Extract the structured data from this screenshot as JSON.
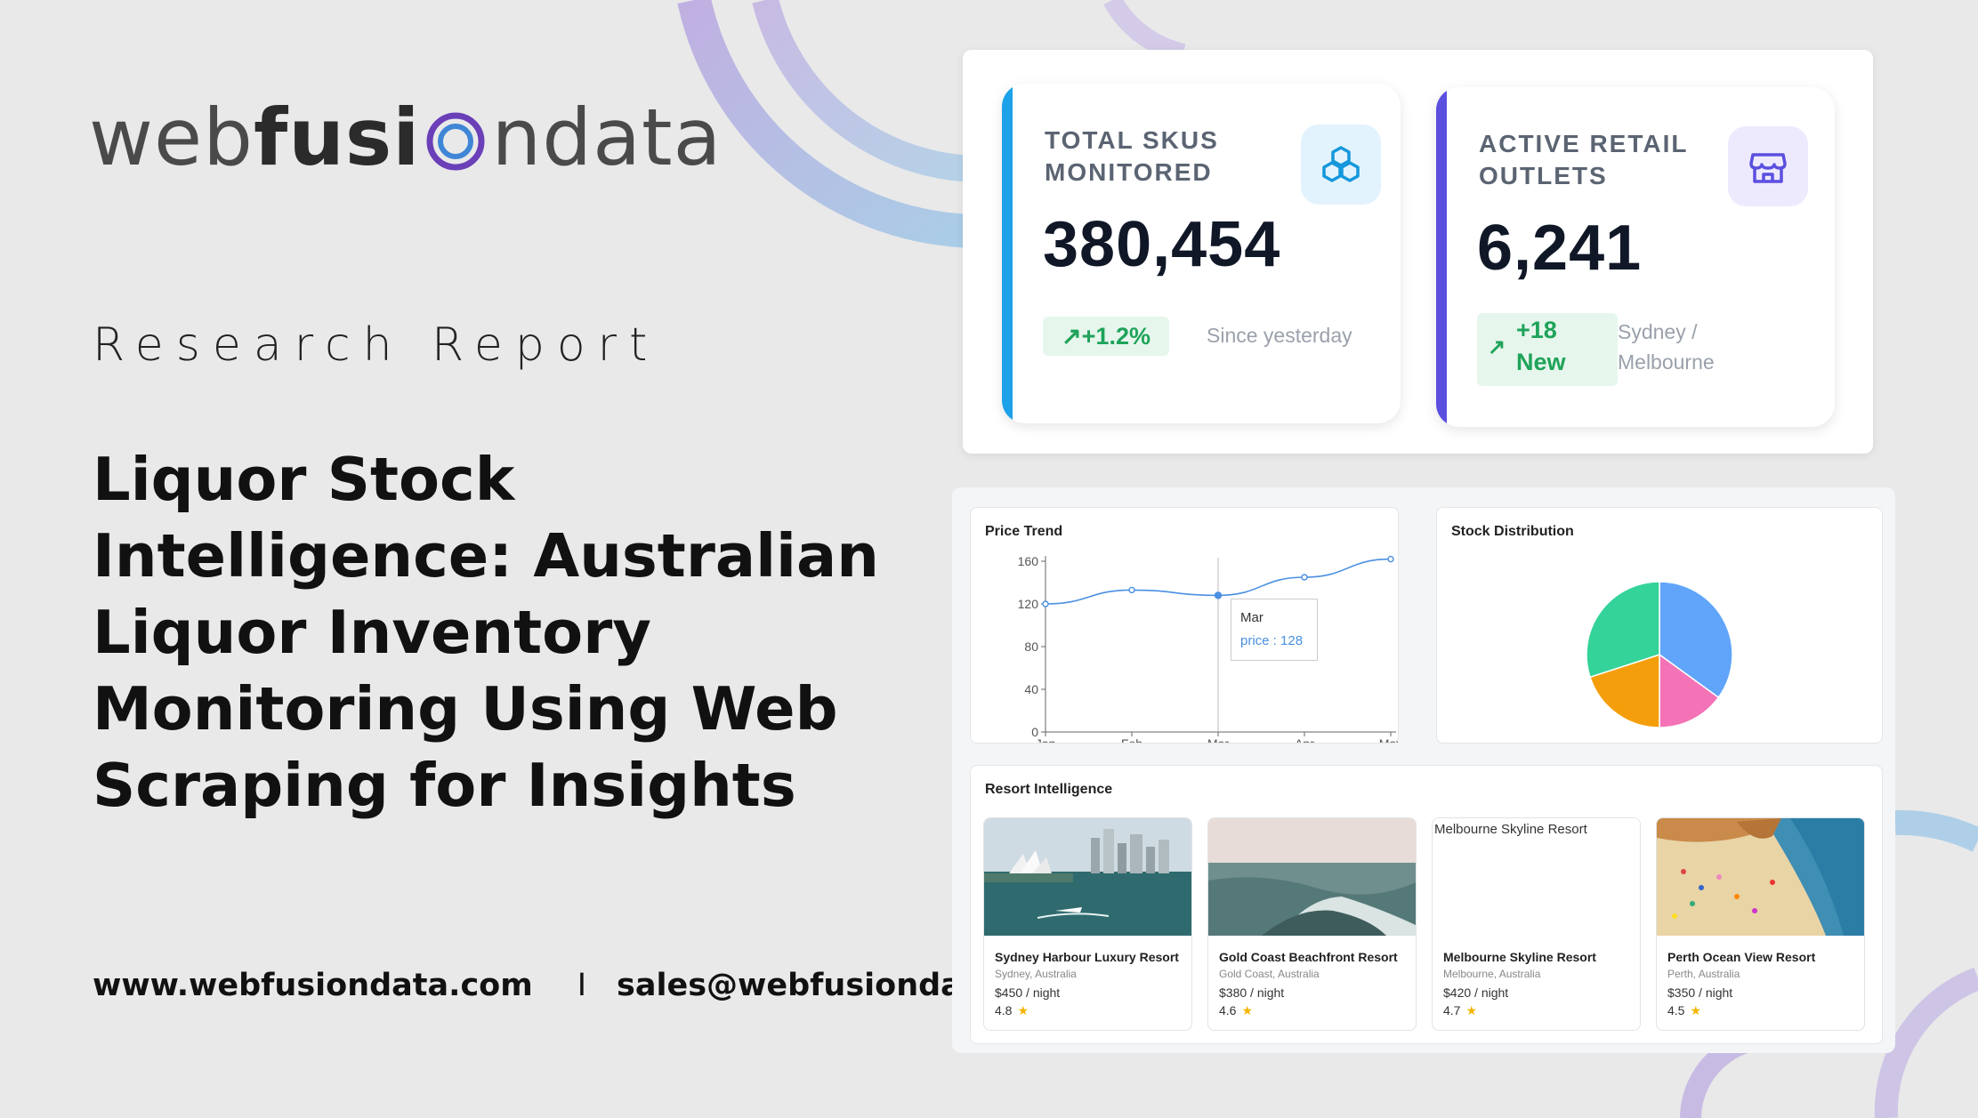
{
  "brand": {
    "part1": "web",
    "part2": "fusi",
    "part3": "ndata"
  },
  "subtitle": "Research Report",
  "title": "Liquor Stock Intelligence: Australian Liquor Inventory Monitoring Using Web Scraping for Insights",
  "contact": {
    "website": "www.webfusiondata.com",
    "separator": "I",
    "email": "sales@webfusiondata.com"
  },
  "kpis": [
    {
      "label_line1": "TOTAL SKUS",
      "label_line2": "MONITORED",
      "value": "380,454",
      "badge": "+1.2%",
      "note": "Since yesterday",
      "icon": "cubes-icon",
      "accent": "#1da1e8"
    },
    {
      "label_line1": "ACTIVE RETAIL",
      "label_line2": "OUTLETS",
      "value": "6,241",
      "badge_line1": "+18",
      "badge_line2": "New",
      "note_line1": "Sydney /",
      "note_line2": "Melbourne",
      "icon": "store-icon",
      "accent": "#5b4fe0"
    }
  ],
  "price_trend": {
    "title": "Price Trend",
    "tooltip": {
      "label": "Mar",
      "value": "price : 128"
    }
  },
  "stock_distribution": {
    "title": "Stock Distribution"
  },
  "chart_data": [
    {
      "type": "line",
      "title": "Price Trend",
      "categories": [
        "Jan",
        "Feb",
        "Mar",
        "Apr",
        "May"
      ],
      "series": [
        {
          "values": [
            120,
            133,
            128,
            145,
            162
          ]
        }
      ],
      "yticks": [
        "0",
        "40",
        "80",
        "120",
        "160"
      ],
      "ylim": [
        0,
        160
      ],
      "line_color": "#4a90e2"
    },
    {
      "type": "pie",
      "title": "Stock Distribution",
      "values": [
        35,
        15,
        20,
        30
      ],
      "colors": [
        "#60a5fa",
        "#f472b6",
        "#f59e0b",
        "#34d399"
      ]
    }
  ],
  "resort_section": {
    "title": "Resort Intelligence"
  },
  "resorts": [
    {
      "name": "Sydney Harbour Luxury Resort",
      "location": "Sydney, Australia",
      "price": "$450 / night",
      "rating": "4.8"
    },
    {
      "name": "Gold Coast Beachfront Resort",
      "location": "Gold Coast, Australia",
      "price": "$380 / night",
      "rating": "4.6"
    },
    {
      "name": "Melbourne Skyline Resort",
      "location": "Melbourne, Australia",
      "price": "$420 / night",
      "rating": "4.7",
      "alt": "Melbourne Skyline Resort"
    },
    {
      "name": "Perth Ocean View Resort",
      "location": "Perth, Australia",
      "price": "$350 / night",
      "rating": "4.5"
    }
  ],
  "rating_star": "★"
}
